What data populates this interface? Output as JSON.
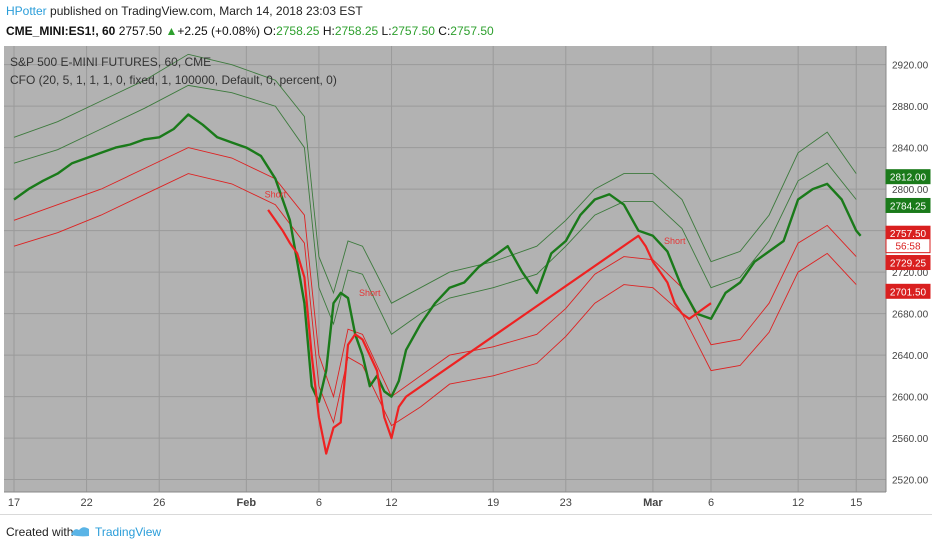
{
  "header": {
    "author": "HPotter",
    "published_text": " published on TradingView.com, March 14, 2018 23:03 EST",
    "symbol": "CME_MINI:ES1!, 60",
    "last": "2757.50",
    "change_arrow": "▲",
    "change": "+2.25 (+0.08%)",
    "o_label": "O:",
    "o_value": "2758.25",
    "h_label": "H:",
    "h_value": "2758.25",
    "l_label": "L:",
    "l_value": "2757.50",
    "c_label": "C:",
    "c_value": "2757.50"
  },
  "footer": {
    "created_with": "Created with",
    "brand": "TradingView"
  },
  "chart_data": {
    "type": "line",
    "title": "S&P 500 E-MINI FUTURES, 60, CME",
    "subtitle": "CFO (20, 5, 1, 1, 1, 0, fixed, 1, 100000, Default, 0, percent, 0)",
    "ylim": [
      2508,
      2938
    ],
    "grid": true,
    "x_ticks": [
      {
        "label": "17",
        "x": 0
      },
      {
        "label": "22",
        "x": 5
      },
      {
        "label": "26",
        "x": 10
      },
      {
        "label": "Feb",
        "x": 16
      },
      {
        "label": "6",
        "x": 21
      },
      {
        "label": "12",
        "x": 26
      },
      {
        "label": "19",
        "x": 33
      },
      {
        "label": "23",
        "x": 38
      },
      {
        "label": "Mar",
        "x": 44
      },
      {
        "label": "6",
        "x": 48
      },
      {
        "label": "12",
        "x": 54
      },
      {
        "label": "15",
        "x": 58
      }
    ],
    "y_ticks": [
      2520,
      2560,
      2600,
      2640,
      2680,
      2720,
      2760,
      2800,
      2840,
      2880,
      2920
    ],
    "y_tick_labels": [
      "2520.00",
      "2560.00",
      "2600.00",
      "2640.00",
      "2680.00",
      "2720.00",
      "2760.00",
      "2800.00",
      "2840.00",
      "2880.00",
      "2920.00"
    ],
    "series": [
      {
        "role": "price",
        "color": "#1a7a1a",
        "x": [
          0,
          1,
          2,
          3,
          4,
          5,
          6,
          7,
          8,
          9,
          10,
          11,
          12,
          13,
          14,
          15,
          16,
          17,
          18,
          19,
          19.5,
          20,
          20.5,
          21,
          21.5,
          22,
          22.5,
          23,
          23.5,
          24,
          24.5,
          25,
          25.5,
          26,
          26.5,
          27,
          28,
          29,
          30,
          31,
          32,
          33,
          34,
          35,
          36,
          37,
          38,
          39,
          40,
          41,
          42,
          43,
          44,
          45,
          46,
          47,
          48,
          49,
          50,
          51,
          52,
          53,
          54,
          55,
          56,
          57,
          58,
          58.3
        ],
        "y": [
          2790,
          2800,
          2808,
          2815,
          2825,
          2830,
          2835,
          2840,
          2843,
          2848,
          2850,
          2858,
          2872,
          2862,
          2850,
          2845,
          2840,
          2832,
          2810,
          2770,
          2730,
          2690,
          2610,
          2595,
          2625,
          2690,
          2700,
          2695,
          2660,
          2640,
          2610,
          2620,
          2605,
          2600,
          2615,
          2645,
          2670,
          2690,
          2705,
          2710,
          2725,
          2735,
          2745,
          2720,
          2700,
          2738,
          2750,
          2775,
          2790,
          2795,
          2785,
          2760,
          2755,
          2740,
          2705,
          2680,
          2675,
          2700,
          2710,
          2730,
          2740,
          2750,
          2790,
          2800,
          2805,
          2790,
          2760,
          2755
        ]
      },
      {
        "role": "sell-trades",
        "color": "#ee2222",
        "x": [
          17.5,
          18,
          18.5,
          19,
          19.5,
          20,
          20.5,
          21,
          21.5,
          22,
          22.5,
          23,
          23.5,
          24,
          24.5,
          25,
          25.5,
          26,
          26.5,
          27,
          43,
          43.5,
          44,
          44.5,
          45,
          45.5,
          46,
          46.5,
          47,
          47.5,
          48
        ],
        "y": [
          2780,
          2770,
          2760,
          2748,
          2738,
          2715,
          2640,
          2580,
          2545,
          2570,
          2575,
          2650,
          2660,
          2655,
          2640,
          2625,
          2580,
          2560,
          2590,
          2600,
          2755,
          2745,
          2730,
          2720,
          2710,
          2690,
          2680,
          2675,
          2680,
          2685,
          2690
        ]
      },
      {
        "role": "band-upper-outer",
        "color": "#3d7a3d",
        "x": [
          0,
          3,
          6,
          9,
          12,
          15,
          18,
          20,
          21,
          22,
          23,
          24,
          26,
          28,
          30,
          33,
          36,
          38,
          40,
          42,
          44,
          46,
          48,
          50,
          52,
          54,
          56,
          58
        ],
        "y": [
          2850,
          2865,
          2885,
          2905,
          2930,
          2920,
          2905,
          2870,
          2735,
          2700,
          2750,
          2745,
          2690,
          2705,
          2720,
          2730,
          2745,
          2770,
          2800,
          2815,
          2815,
          2790,
          2730,
          2740,
          2775,
          2835,
          2855,
          2815
        ]
      },
      {
        "role": "band-upper-inner",
        "color": "#3d7a3d",
        "x": [
          0,
          3,
          6,
          9,
          12,
          15,
          18,
          20,
          21,
          22,
          23,
          24,
          26,
          28,
          30,
          33,
          36,
          38,
          40,
          42,
          44,
          46,
          48,
          50,
          52,
          54,
          56,
          58
        ],
        "y": [
          2825,
          2838,
          2858,
          2878,
          2900,
          2893,
          2880,
          2840,
          2705,
          2670,
          2722,
          2718,
          2660,
          2680,
          2695,
          2705,
          2718,
          2745,
          2775,
          2788,
          2788,
          2762,
          2705,
          2715,
          2750,
          2808,
          2825,
          2790
        ]
      },
      {
        "role": "band-lower-inner",
        "color": "#dd2222",
        "x": [
          0,
          3,
          6,
          9,
          12,
          15,
          18,
          20,
          21,
          22,
          23,
          24,
          26,
          28,
          30,
          33,
          36,
          38,
          40,
          42,
          44,
          46,
          48,
          50,
          52,
          54,
          56,
          58
        ],
        "y": [
          2770,
          2785,
          2800,
          2820,
          2840,
          2830,
          2810,
          2775,
          2640,
          2600,
          2665,
          2660,
          2600,
          2620,
          2640,
          2648,
          2660,
          2685,
          2718,
          2735,
          2732,
          2705,
          2650,
          2655,
          2690,
          2748,
          2765,
          2735
        ]
      },
      {
        "role": "band-lower-outer",
        "color": "#dd2222",
        "x": [
          0,
          3,
          6,
          9,
          12,
          15,
          18,
          20,
          21,
          22,
          23,
          24,
          26,
          28,
          30,
          33,
          36,
          38,
          40,
          42,
          44,
          46,
          48,
          50,
          52,
          54,
          56,
          58
        ],
        "y": [
          2745,
          2758,
          2775,
          2795,
          2815,
          2805,
          2785,
          2748,
          2610,
          2575,
          2638,
          2630,
          2572,
          2590,
          2612,
          2620,
          2632,
          2658,
          2690,
          2708,
          2705,
          2680,
          2625,
          2630,
          2662,
          2720,
          2738,
          2708
        ]
      }
    ],
    "annotations": [
      {
        "text": "Short",
        "x": 18,
        "y": 2792,
        "color": "#e53535"
      },
      {
        "text": "Short",
        "x": 24.5,
        "y": 2697,
        "color": "#e53535"
      },
      {
        "text": "Short",
        "x": 45.5,
        "y": 2747,
        "color": "#e53535"
      }
    ],
    "price_badges": [
      {
        "label": "2812.00",
        "value": 2812.0,
        "bg": "#1a7a1a",
        "fg": "#ffffff"
      },
      {
        "label": "2784.25",
        "value": 2784.25,
        "bg": "#1a7a1a",
        "fg": "#ffffff"
      },
      {
        "label": "2757.50",
        "value": 2757.5,
        "bg": "#d91f1f",
        "fg": "#ffffff"
      },
      {
        "label": "56:58",
        "value": 2745.5,
        "bg": "#ffffff",
        "fg": "#d91f1f"
      },
      {
        "label": "2729.25",
        "value": 2729.25,
        "bg": "#d91f1f",
        "fg": "#ffffff"
      },
      {
        "label": "2701.50",
        "value": 2701.5,
        "bg": "#d91f1f",
        "fg": "#ffffff"
      }
    ],
    "plot_bg": "#b2b2b2"
  }
}
